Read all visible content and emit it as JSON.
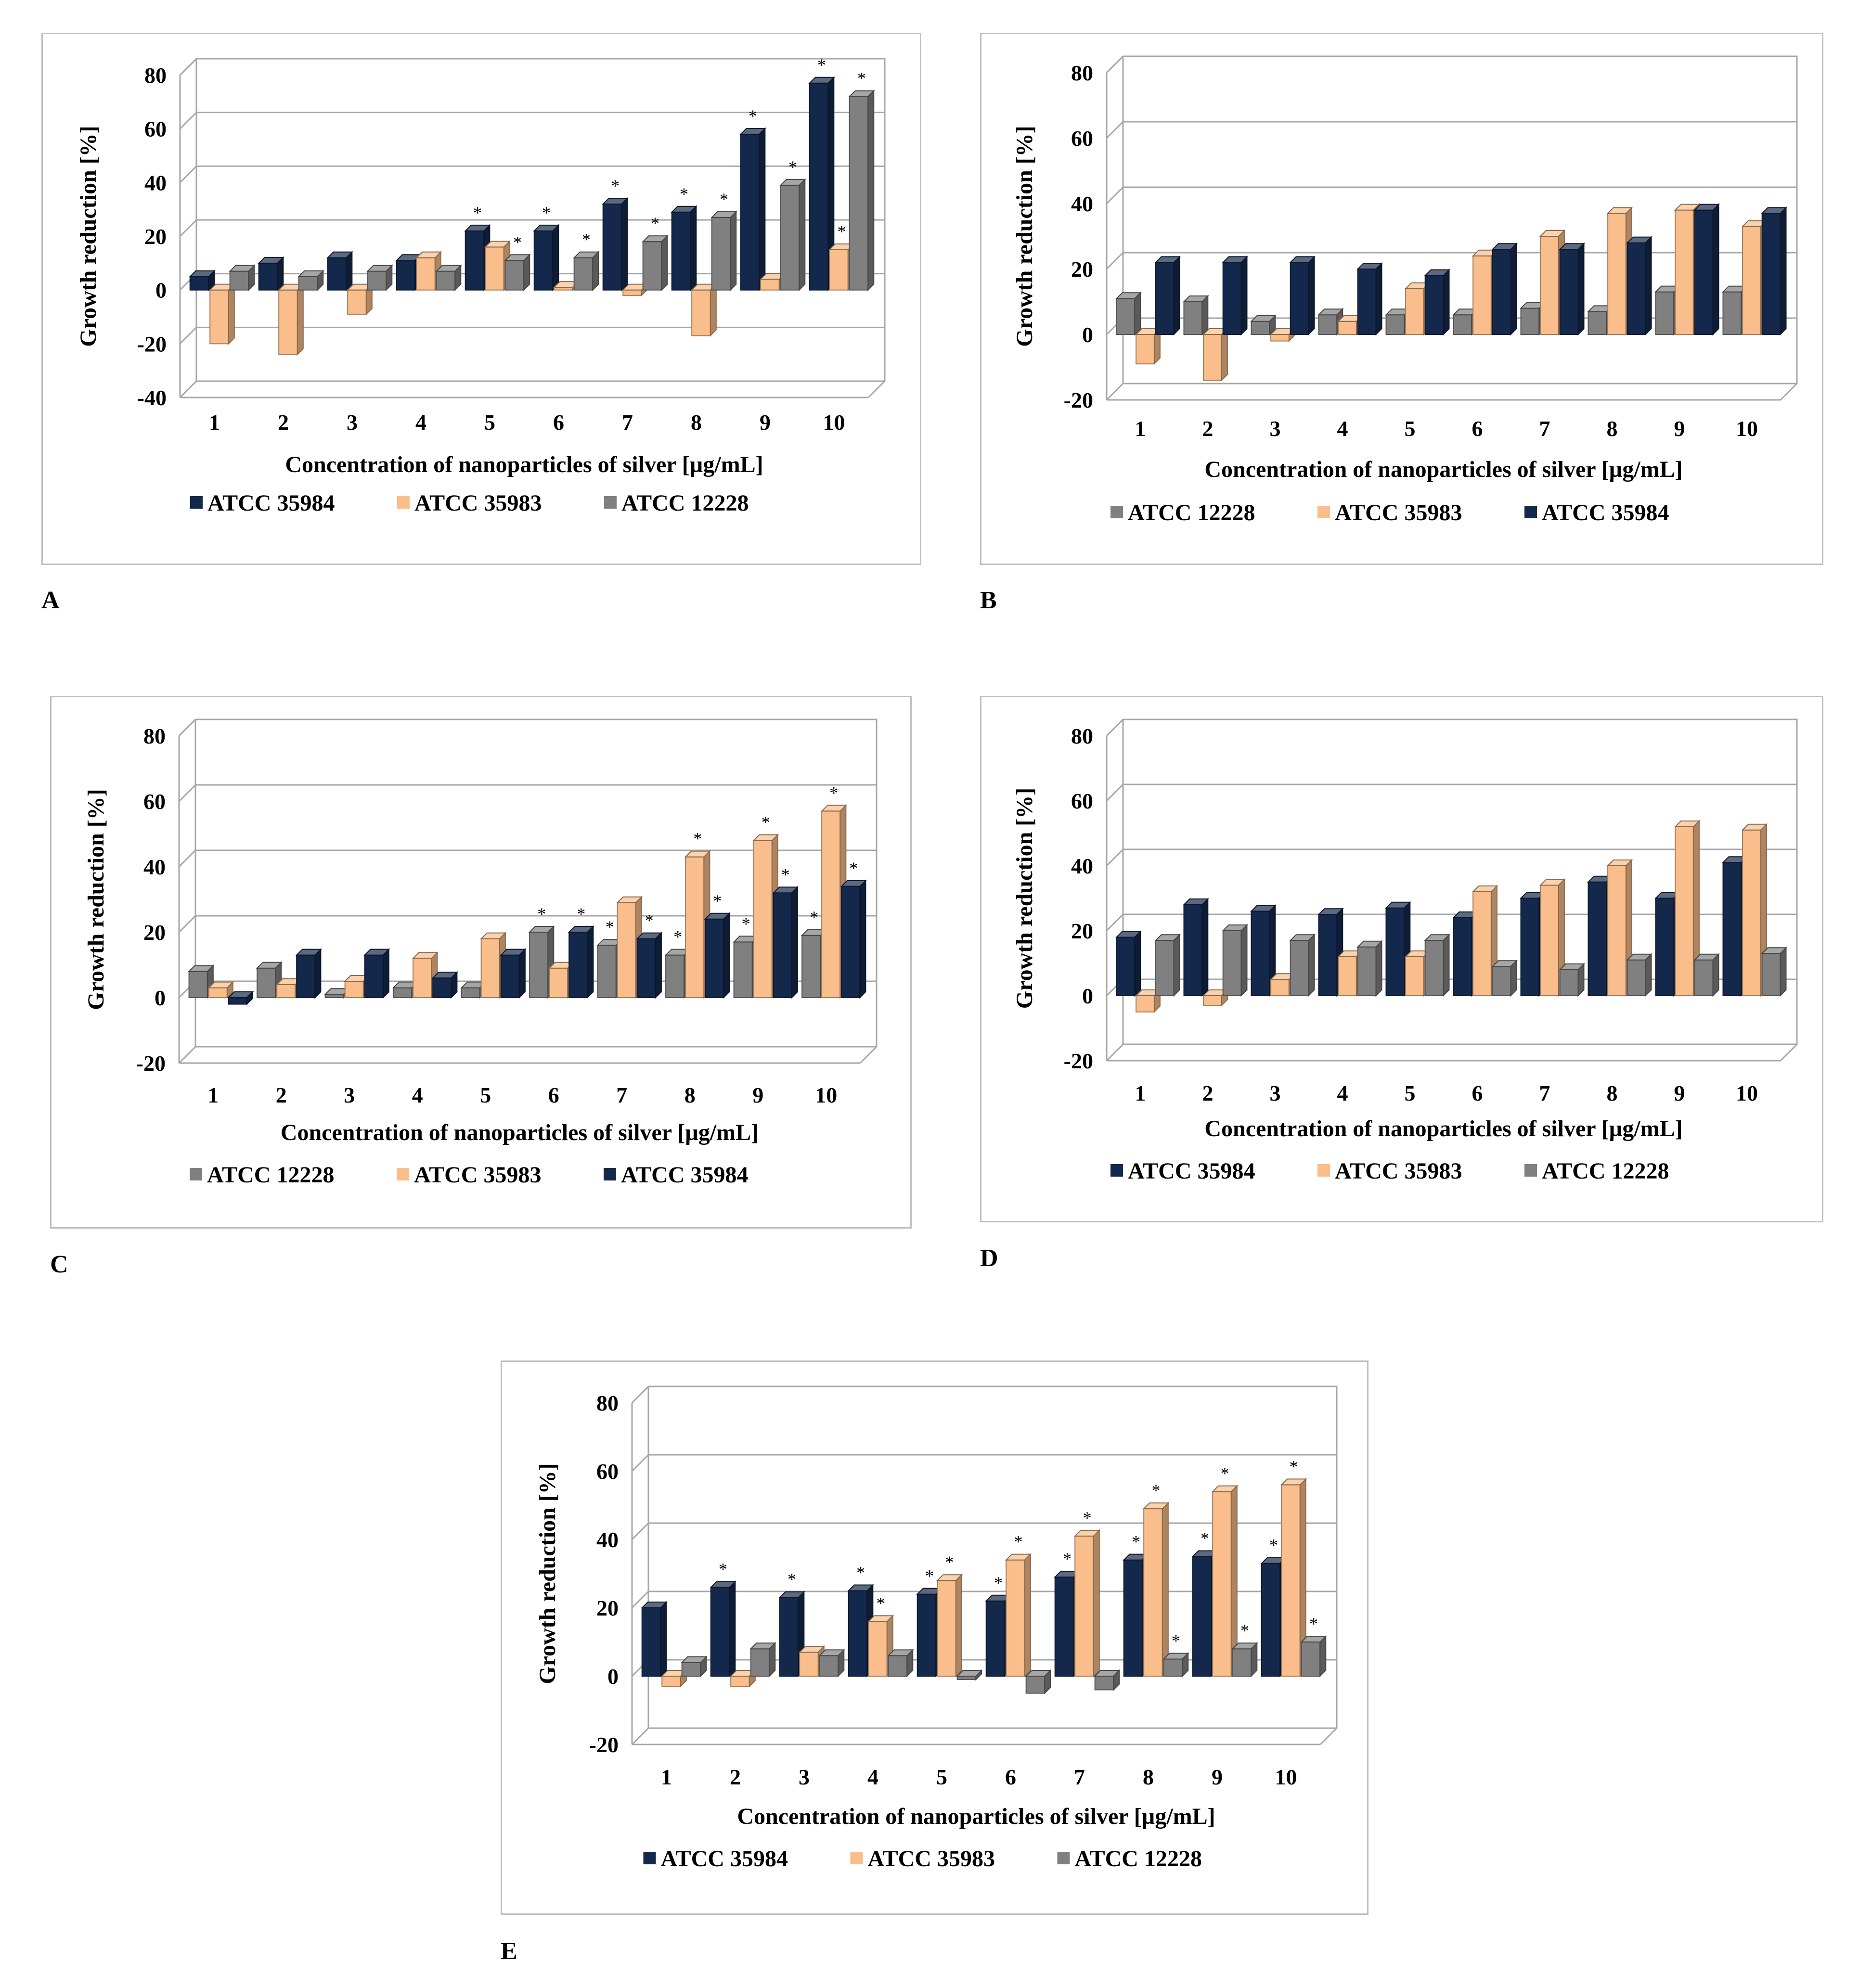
{
  "colors": {
    "ATCC 35984": "#14284b",
    "ATCC 35983": "#f9be8b",
    "ATCC 12228": "#808080",
    "gridline": "#a6a6a6",
    "frame": "#bfbfbf"
  },
  "chart_data": [
    {
      "panel": "A",
      "type": "bar",
      "ylabel": "Growth reduction [%]",
      "xlabel": "Concentration of nanoparticles of silver [µg/mL]",
      "ylim": [
        -40,
        80
      ],
      "yticks": [
        "-40",
        "-20",
        "0",
        "20",
        "40",
        "60",
        "80"
      ],
      "categories": [
        "1",
        "2",
        "3",
        "4",
        "5",
        "6",
        "7",
        "8",
        "9",
        "10"
      ],
      "legend": [
        "ATCC 35984",
        "ATCC 35983",
        "ATCC 12228"
      ],
      "series": [
        {
          "name": "ATCC 35984",
          "values": [
            5,
            10,
            12,
            11,
            22,
            22,
            32,
            29,
            58,
            77
          ],
          "sig": [
            false,
            false,
            false,
            false,
            true,
            true,
            true,
            true,
            true,
            true
          ]
        },
        {
          "name": "ATCC 35983",
          "values": [
            -20,
            -24,
            -9,
            12,
            16,
            1,
            -2,
            -17,
            4,
            15
          ],
          "sig": [
            false,
            false,
            false,
            false,
            false,
            false,
            false,
            false,
            false,
            true
          ]
        },
        {
          "name": "ATCC 12228",
          "values": [
            7,
            5,
            7,
            7,
            11,
            12,
            18,
            27,
            39,
            72
          ],
          "sig": [
            false,
            false,
            false,
            false,
            true,
            true,
            true,
            true,
            true,
            true
          ]
        }
      ]
    },
    {
      "panel": "B",
      "type": "bar",
      "ylabel": "Growth reduction [%]",
      "xlabel": "Concentration of nanoparticles of silver [µg/mL]",
      "ylim": [
        -20,
        80
      ],
      "yticks": [
        "-20",
        "0",
        "20",
        "40",
        "60",
        "80"
      ],
      "categories": [
        "1",
        "2",
        "3",
        "4",
        "5",
        "6",
        "7",
        "8",
        "9",
        "10"
      ],
      "legend": [
        "ATCC 12228",
        "ATCC 35983",
        "ATCC 35984"
      ],
      "series": [
        {
          "name": "ATCC 12228",
          "values": [
            11,
            10,
            4,
            6,
            6,
            6,
            8,
            7,
            13,
            13
          ],
          "sig": [
            false,
            false,
            false,
            false,
            false,
            false,
            false,
            false,
            false,
            false
          ]
        },
        {
          "name": "ATCC 35983",
          "values": [
            -9,
            -14,
            -2,
            4,
            14,
            24,
            30,
            37,
            38,
            33
          ],
          "sig": [
            false,
            false,
            false,
            false,
            false,
            false,
            false,
            false,
            false,
            false
          ]
        },
        {
          "name": "ATCC 35984",
          "values": [
            22,
            22,
            22,
            20,
            18,
            26,
            26,
            28,
            38,
            37
          ],
          "sig": [
            false,
            false,
            false,
            false,
            false,
            false,
            false,
            false,
            false,
            false
          ]
        }
      ]
    },
    {
      "panel": "C",
      "type": "bar",
      "ylabel": "Growth reduction [%]",
      "xlabel": "Concentration of nanoparticles of silver [µg/mL]",
      "ylim": [
        -20,
        80
      ],
      "yticks": [
        "-20",
        "0",
        "20",
        "40",
        "60",
        "80"
      ],
      "categories": [
        "1",
        "2",
        "3",
        "4",
        "5",
        "6",
        "7",
        "8",
        "9",
        "10"
      ],
      "legend": [
        "ATCC 12228",
        "ATCC 35983",
        "ATCC 35984"
      ],
      "series": [
        {
          "name": "ATCC 12228",
          "values": [
            8,
            9,
            1,
            3,
            3,
            20,
            16,
            13,
            17,
            19
          ],
          "sig": [
            false,
            false,
            false,
            false,
            false,
            true,
            true,
            true,
            true,
            true
          ]
        },
        {
          "name": "ATCC 35983",
          "values": [
            3,
            4,
            5,
            12,
            18,
            9,
            29,
            43,
            48,
            57
          ],
          "sig": [
            false,
            false,
            false,
            false,
            false,
            false,
            false,
            true,
            true,
            true
          ]
        },
        {
          "name": "ATCC 35984",
          "values": [
            -2,
            13,
            13,
            6,
            13,
            20,
            18,
            24,
            32,
            34
          ],
          "sig": [
            false,
            false,
            false,
            false,
            false,
            true,
            true,
            true,
            true,
            true
          ]
        }
      ]
    },
    {
      "panel": "D",
      "type": "bar",
      "ylabel": "Growth reduction [%]",
      "xlabel": "Concentration of nanoparticles of silver [µg/mL]",
      "ylim": [
        -20,
        80
      ],
      "yticks": [
        "-20",
        "0",
        "20",
        "40",
        "60",
        "80"
      ],
      "categories": [
        "1",
        "2",
        "3",
        "4",
        "5",
        "6",
        "7",
        "8",
        "9",
        "10"
      ],
      "legend": [
        "ATCC 35984",
        "ATCC 35983",
        "ATCC 12228"
      ],
      "series": [
        {
          "name": "ATCC 35984",
          "values": [
            18,
            28,
            26,
            25,
            27,
            24,
            30,
            35,
            30,
            41
          ],
          "sig": [
            false,
            false,
            false,
            false,
            false,
            false,
            false,
            false,
            false,
            false
          ]
        },
        {
          "name": "ATCC 35983",
          "values": [
            -5,
            -3,
            5,
            12,
            12,
            32,
            34,
            40,
            52,
            51
          ],
          "sig": [
            false,
            false,
            false,
            false,
            false,
            false,
            false,
            false,
            false,
            false
          ]
        },
        {
          "name": "ATCC 12228",
          "values": [
            17,
            20,
            17,
            15,
            17,
            9,
            8,
            11,
            11,
            13
          ],
          "sig": [
            false,
            false,
            false,
            false,
            false,
            false,
            false,
            false,
            false,
            false
          ]
        }
      ]
    },
    {
      "panel": "E",
      "type": "bar",
      "ylabel": "Growth reduction [%]",
      "xlabel": "Concentration of nanoparticles of silver [µg/mL]",
      "ylim": [
        -20,
        80
      ],
      "yticks": [
        "-20",
        "0",
        "20",
        "40",
        "60",
        "80"
      ],
      "categories": [
        "1",
        "2",
        "3",
        "4",
        "5",
        "6",
        "7",
        "8",
        "9",
        "10"
      ],
      "legend": [
        "ATCC 35984",
        "ATCC 35983",
        "ATCC 12228"
      ],
      "series": [
        {
          "name": "ATCC 35984",
          "values": [
            20,
            26,
            23,
            25,
            24,
            22,
            29,
            34,
            35,
            33
          ],
          "sig": [
            false,
            true,
            true,
            true,
            true,
            true,
            true,
            true,
            true,
            true
          ]
        },
        {
          "name": "ATCC 35983",
          "values": [
            -3,
            -3,
            7,
            16,
            28,
            34,
            41,
            49,
            54,
            56
          ],
          "sig": [
            false,
            false,
            false,
            true,
            true,
            true,
            true,
            true,
            true,
            true
          ]
        },
        {
          "name": "ATCC 12228",
          "values": [
            4,
            8,
            6,
            6,
            -1,
            -5,
            -4,
            5,
            8,
            10
          ],
          "sig": [
            false,
            false,
            false,
            false,
            false,
            false,
            false,
            true,
            true,
            true
          ]
        }
      ]
    }
  ],
  "panel_labels": {
    "A": "A",
    "B": "B",
    "C": "C",
    "D": "D",
    "E": "E"
  }
}
